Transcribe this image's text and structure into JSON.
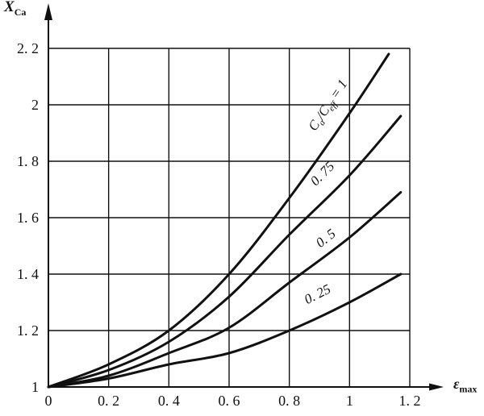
{
  "figure": {
    "background": "#ffffff",
    "ink_color": "#111111",
    "y_axis_title": {
      "main": "X",
      "sub": "Ca"
    },
    "x_axis_title": {
      "main": "ε",
      "sub": "max"
    }
  },
  "chart_data": {
    "type": "line",
    "title": "",
    "xlabel": "ε_max",
    "ylabel": "X_Ca",
    "xlim": [
      0,
      1.31
    ],
    "ylim": [
      1,
      2.36
    ],
    "grid": true,
    "grid_box": {
      "x": [
        0,
        1.2
      ],
      "y": [
        1,
        2.2
      ]
    },
    "legend_position": "labels-along-curves",
    "x_ticks": {
      "values": [
        0,
        0.2,
        0.4,
        0.6,
        0.8,
        1,
        1.2
      ],
      "labels": [
        "0",
        "0. 2",
        "0. 4",
        "0. 6",
        "0. 8",
        "1",
        "1. 2"
      ]
    },
    "y_ticks": {
      "values": [
        1,
        1.2,
        1.4,
        1.6,
        1.8,
        2,
        2.2
      ],
      "labels": [
        "1",
        "1. 2",
        "1. 4",
        "1. 6",
        "1. 8",
        "2",
        "2. 2"
      ]
    },
    "series": [
      {
        "id": "ca-ratio-1",
        "name": "Ca/Ceff = 1",
        "ratio": 1,
        "points": [
          [
            0,
            1
          ],
          [
            0.2,
            1.08
          ],
          [
            0.4,
            1.2
          ],
          [
            0.6,
            1.4
          ],
          [
            0.8,
            1.67
          ],
          [
            1.0,
            1.97
          ],
          [
            1.13,
            2.18
          ]
        ],
        "label": {
          "parts": [
            {
              "text": "C"
            },
            {
              "text": "a",
              "sub": true
            },
            {
              "text": "/C"
            },
            {
              "text": "eff",
              "sub": true
            },
            {
              "text": " = 1"
            }
          ],
          "x": 0.94,
          "y": 1.99,
          "rotation": -56
        }
      },
      {
        "id": "ca-ratio-075",
        "name": "Ca/Ceff = 0.75",
        "ratio": 0.75,
        "points": [
          [
            0,
            1
          ],
          [
            0.2,
            1.06
          ],
          [
            0.4,
            1.16
          ],
          [
            0.6,
            1.32
          ],
          [
            0.8,
            1.54
          ],
          [
            1.0,
            1.75
          ],
          [
            1.17,
            1.96
          ]
        ],
        "label": {
          "parts": [
            {
              "text": "0. 75"
            }
          ],
          "x": 0.92,
          "y": 1.745,
          "rotation": -45
        }
      },
      {
        "id": "ca-ratio-05",
        "name": "Ca/Ceff = 0.5",
        "ratio": 0.5,
        "points": [
          [
            0,
            1
          ],
          [
            0.2,
            1.04
          ],
          [
            0.4,
            1.12
          ],
          [
            0.6,
            1.21
          ],
          [
            0.8,
            1.37
          ],
          [
            1.0,
            1.53
          ],
          [
            1.17,
            1.69
          ]
        ],
        "label": {
          "parts": [
            {
              "text": "0. 5"
            }
          ],
          "x": 0.93,
          "y": 1.515,
          "rotation": -38
        }
      },
      {
        "id": "ca-ratio-025",
        "name": "Ca/Ceff = 0.25",
        "ratio": 0.25,
        "points": [
          [
            0,
            1
          ],
          [
            0.2,
            1.03
          ],
          [
            0.4,
            1.08
          ],
          [
            0.6,
            1.12
          ],
          [
            0.8,
            1.2
          ],
          [
            1.0,
            1.3
          ],
          [
            1.17,
            1.4
          ]
        ],
        "label": {
          "parts": [
            {
              "text": "0. 25"
            }
          ],
          "x": 0.9,
          "y": 1.315,
          "rotation": -27
        }
      }
    ]
  }
}
